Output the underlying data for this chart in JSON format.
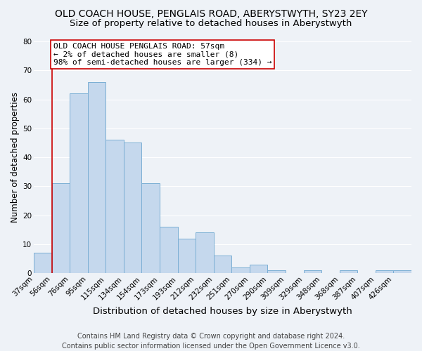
{
  "title": "OLD COACH HOUSE, PENGLAIS ROAD, ABERYSTWYTH, SY23 2EY",
  "subtitle": "Size of property relative to detached houses in Aberystwyth",
  "xlabel": "Distribution of detached houses by size in Aberystwyth",
  "ylabel": "Number of detached properties",
  "bar_color": "#c5d8ed",
  "bar_edge_color": "#7aaed4",
  "background_color": "#eef2f7",
  "bin_labels": [
    "37sqm",
    "56sqm",
    "76sqm",
    "95sqm",
    "115sqm",
    "134sqm",
    "154sqm",
    "173sqm",
    "193sqm",
    "212sqm",
    "232sqm",
    "251sqm",
    "270sqm",
    "290sqm",
    "309sqm",
    "329sqm",
    "348sqm",
    "368sqm",
    "387sqm",
    "407sqm",
    "426sqm"
  ],
  "bar_heights": [
    7,
    31,
    62,
    66,
    46,
    45,
    31,
    16,
    12,
    14,
    6,
    2,
    3,
    1,
    0,
    1,
    0,
    1,
    0,
    1,
    1
  ],
  "ylim": [
    0,
    80
  ],
  "yticks": [
    0,
    10,
    20,
    30,
    40,
    50,
    60,
    70,
    80
  ],
  "vline_x_index": 1,
  "vline_color": "#cc0000",
  "annotation_line1": "OLD COACH HOUSE PENGLAIS ROAD: 57sqm",
  "annotation_line2": "← 2% of detached houses are smaller (8)",
  "annotation_line3": "98% of semi-detached houses are larger (334) →",
  "footer_line1": "Contains HM Land Registry data © Crown copyright and database right 2024.",
  "footer_line2": "Contains public sector information licensed under the Open Government Licence v3.0.",
  "grid_color": "#ffffff",
  "title_fontsize": 10,
  "subtitle_fontsize": 9.5,
  "xlabel_fontsize": 9.5,
  "ylabel_fontsize": 8.5,
  "tick_fontsize": 7.5,
  "annotation_fontsize": 8,
  "footer_fontsize": 7
}
